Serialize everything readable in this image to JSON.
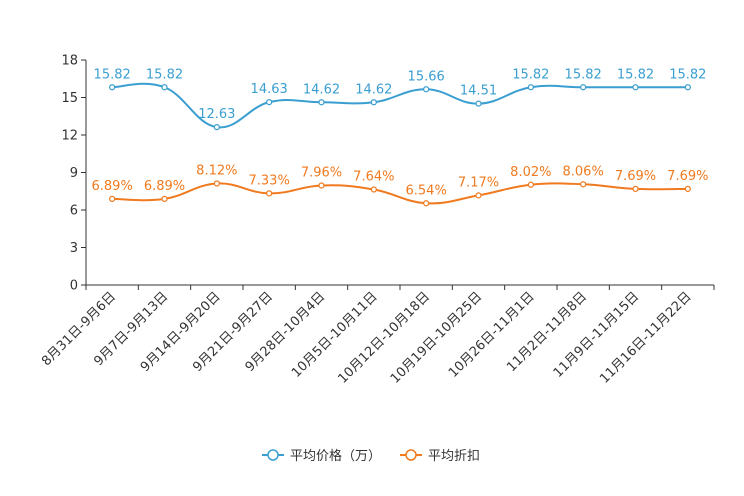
{
  "chart_data": {
    "type": "line",
    "categories": [
      "8月31日-9月6日",
      "9月7日-9月13日",
      "9月14日-9月20日",
      "9月21日-9月27日",
      "9月28日-10月4日",
      "10月5日-10月11日",
      "10月12日-10月18日",
      "10月19日-10月25日",
      "10月26日-11月1日",
      "11月2日-11月8日",
      "11月9日-11月15日",
      "11月16日-11月22日"
    ],
    "ylim": [
      0,
      18
    ],
    "yticks": [
      0,
      3,
      6,
      9,
      12,
      15,
      18
    ],
    "series": [
      {
        "name": "平均价格（万）",
        "color": "#3a9fd0",
        "values": [
          15.82,
          15.82,
          12.63,
          14.63,
          14.62,
          14.62,
          15.66,
          14.51,
          15.82,
          15.82,
          15.82,
          15.82
        ],
        "labels": [
          "15.82",
          "15.82",
          "12.63",
          "14.63",
          "14.62",
          "14.62",
          "15.66",
          "14.51",
          "15.82",
          "15.82",
          "15.82",
          "15.82"
        ]
      },
      {
        "name": "平均折扣",
        "color": "#f07a1f",
        "values": [
          6.89,
          6.89,
          8.12,
          7.33,
          7.96,
          7.64,
          6.54,
          7.17,
          8.02,
          8.06,
          7.69,
          7.69
        ],
        "labels": [
          "6.89%",
          "6.89%",
          "8.12%",
          "7.33%",
          "7.96%",
          "7.64%",
          "6.54%",
          "7.17%",
          "8.02%",
          "8.06%",
          "7.69%",
          "7.69%"
        ]
      }
    ],
    "legend": "bottom-center",
    "grid": false
  }
}
